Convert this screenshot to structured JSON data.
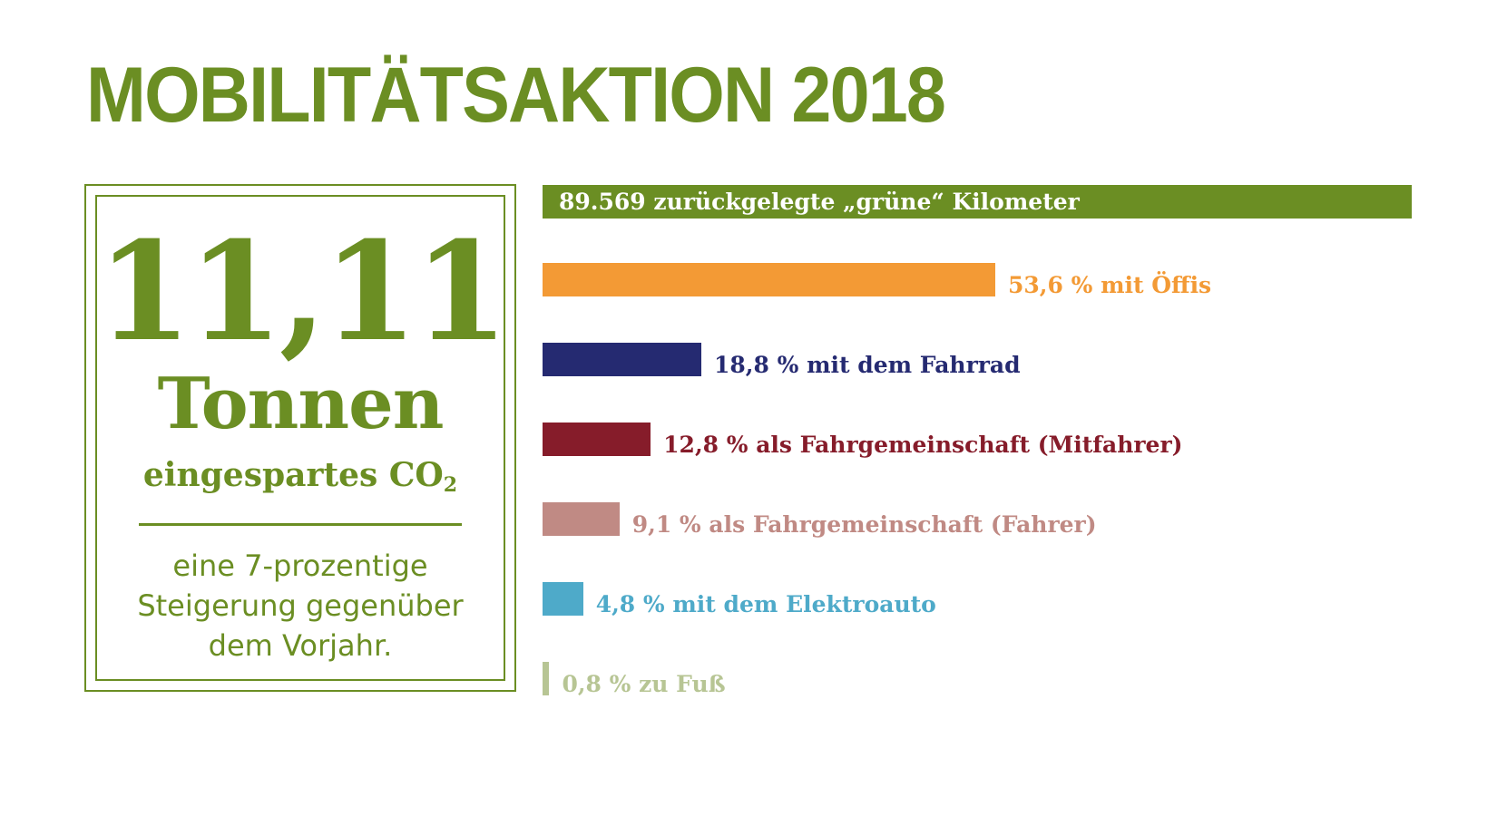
{
  "title": "MOBILITÄTSAKTION 2018",
  "stat": {
    "number": "11,11",
    "unit": "Tonnen",
    "co2_text": "eingespartes CO",
    "co2_sub": "2",
    "note_lines": [
      "eine 7-prozentige",
      "Steigerung gegenüber",
      "dem Vorjahr."
    ]
  },
  "km_banner": "89.569 zurückgelegte „grüne“ Kilometer",
  "chart_data": {
    "type": "bar",
    "orientation": "horizontal",
    "title": "89.569 zurückgelegte „grüne“ Kilometer",
    "unit": "%",
    "xlim": [
      0,
      100
    ],
    "bars": [
      {
        "value": 53.6,
        "label": "53,6 % mit Öffis",
        "color": "#f39a35"
      },
      {
        "value": 18.8,
        "label": "18,8 % mit dem Fahrrad",
        "color": "#252a71"
      },
      {
        "value": 12.8,
        "label": "12,8 % als Fahrgemeinschaft (Mitfahrer)",
        "color": "#861c2a"
      },
      {
        "value": 9.1,
        "label": "9,1 % als Fahrgemeinschaft (Fahrer)",
        "color": "#c08a84"
      },
      {
        "value": 4.8,
        "label": "4,8 % mit dem Elektroauto",
        "color": "#4eaac9"
      },
      {
        "value": 0.8,
        "label": "0,8 % zu Fuß",
        "color": "#b7c594"
      }
    ]
  },
  "colors": {
    "brand_green": "#6b8e23",
    "background": "#ffffff"
  }
}
